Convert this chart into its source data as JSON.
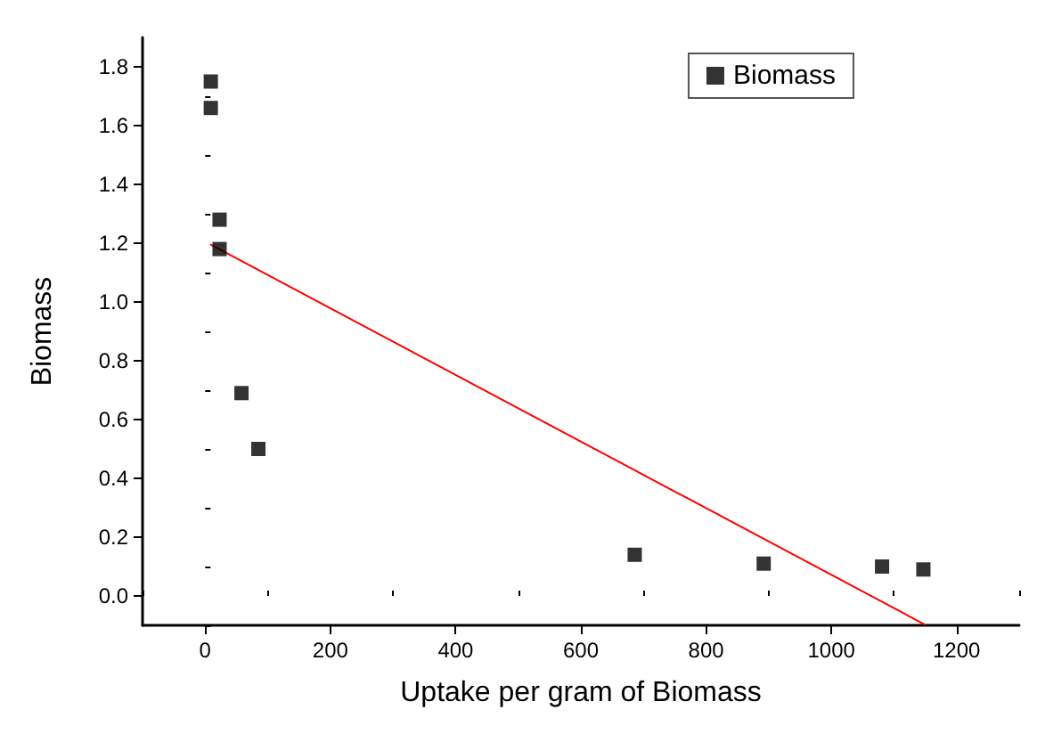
{
  "chart_data": {
    "type": "scatter",
    "xlabel": "Uptake per gram of Biomass",
    "ylabel": "Biomass",
    "marker": "square",
    "grid": false,
    "legend": "top right",
    "xlim": [
      -100,
      1300
    ],
    "xticks": [
      0,
      200,
      400,
      600,
      800,
      1000,
      1200
    ],
    "ylim": [
      -0.1,
      1.9
    ],
    "yticks": [
      {
        "value": 0,
        "label": "0.0"
      },
      {
        "value": 0.2,
        "label": "0.2"
      },
      {
        "value": 0.4,
        "label": "0.4"
      },
      {
        "value": 0.6,
        "label": "0.6"
      },
      {
        "value": 0.8,
        "label": "0.8"
      },
      {
        "value": 1,
        "label": "1.0"
      },
      {
        "value": 1.2,
        "label": "1.2"
      },
      {
        "value": 1.4,
        "label": "1.4"
      },
      {
        "value": 1.6,
        "label": "1.6"
      },
      {
        "value": 1.8,
        "label": "1.8"
      }
    ],
    "series": [
      {
        "name": "Biomass",
        "color": "#000000",
        "x": [
          9,
          9,
          23,
          23,
          58,
          85,
          686,
          892,
          1081,
          1147
        ],
        "values": [
          1.75,
          1.66,
          1.28,
          1.18,
          0.69,
          0.5,
          0.14,
          0.11,
          0.1,
          0.09
        ]
      },
      {
        "type": "line",
        "color": "#ff0000",
        "marker": "none",
        "x": [
          9,
          1149
        ],
        "values": [
          1.195,
          -0.097
        ]
      }
    ]
  }
}
